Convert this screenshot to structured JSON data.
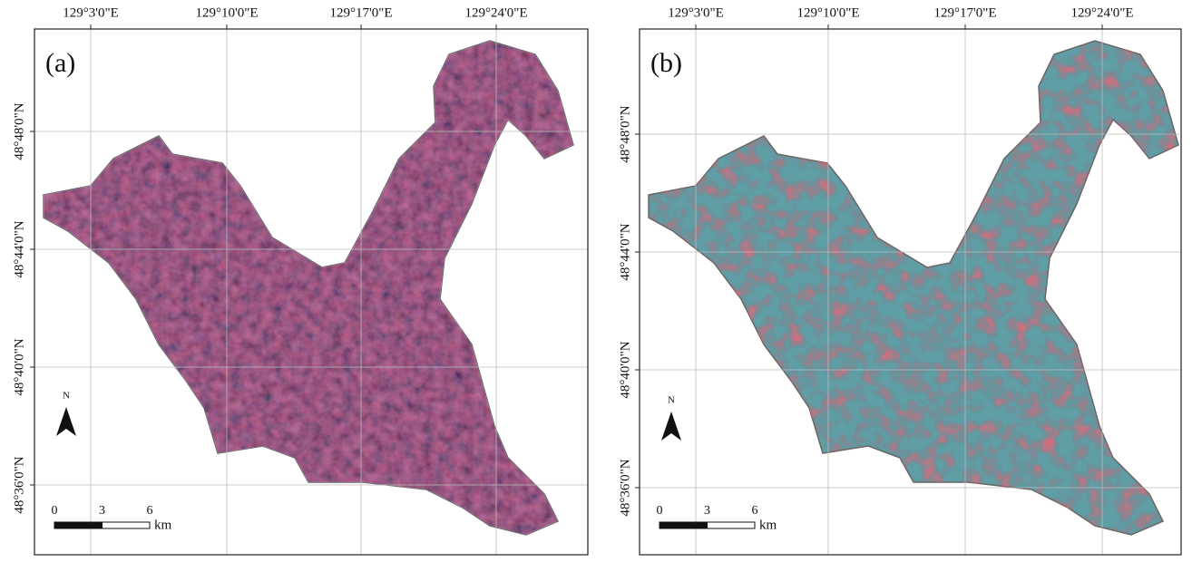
{
  "panels": [
    {
      "label": "(a)",
      "lon_labels": [
        "129°3'0\"E",
        "129°10'0\"E",
        "129°17'0\"E",
        "129°24'0\"E"
      ],
      "lat_labels": [
        "48°48'0\"N",
        "48°44'0\"N",
        "48°40'0\"N",
        "48°36'0\"N"
      ],
      "north": "N",
      "scale_ticks": [
        0,
        3,
        6
      ],
      "scale_unit": "km"
    },
    {
      "label": "(b)",
      "lon_labels": [
        "129°3'0\"E",
        "129°10'0\"E",
        "129°17'0\"E",
        "129°24'0\"E"
      ],
      "lat_labels": [
        "48°48'0\"N",
        "48°44'0\"N",
        "48°40'0\"N",
        "48°36'0\"N"
      ],
      "north": "N",
      "scale_ticks": [
        0,
        3,
        6
      ],
      "scale_unit": "km"
    }
  ]
}
